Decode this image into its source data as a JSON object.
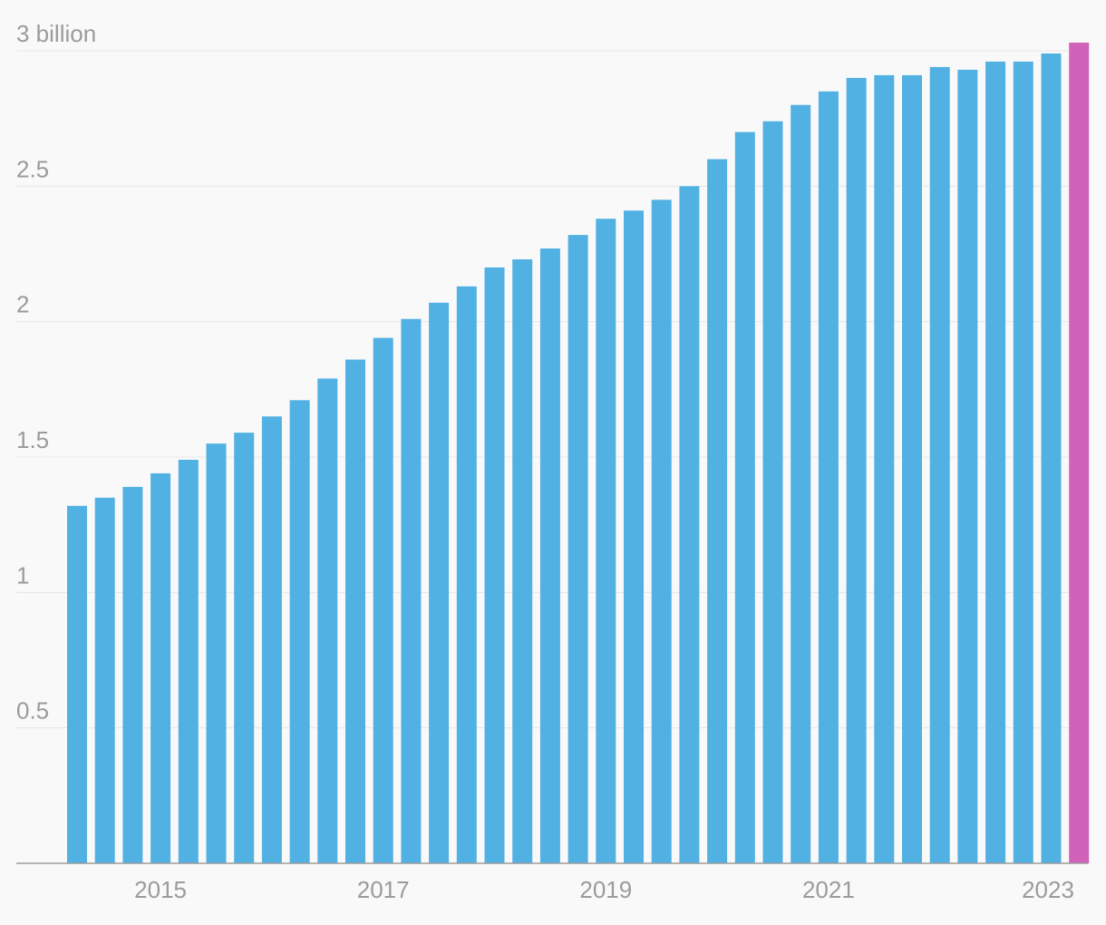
{
  "chart_data": {
    "type": "bar",
    "title": "",
    "xlabel": "",
    "ylabel": "",
    "unit": "billion",
    "ylim": [
      0,
      3
    ],
    "grid": true,
    "legend": "none",
    "y_ticks": [
      {
        "value": 0.5,
        "label": "0.5"
      },
      {
        "value": 1,
        "label": "1"
      },
      {
        "value": 1.5,
        "label": "1.5"
      },
      {
        "value": 2,
        "label": "2"
      },
      {
        "value": 2.5,
        "label": "2.5"
      },
      {
        "value": 3,
        "label": "3 billion"
      }
    ],
    "x_ticks": [
      {
        "category": "2015 Q1",
        "label": "2015"
      },
      {
        "category": "2017 Q1",
        "label": "2017"
      },
      {
        "category": "2019 Q1",
        "label": "2019"
      },
      {
        "category": "2021 Q1",
        "label": "2021"
      },
      {
        "category": "2023 Q1",
        "label": "2023"
      }
    ],
    "categories": [
      "2014 Q2",
      "2014 Q3",
      "2014 Q4",
      "2015 Q1",
      "2015 Q2",
      "2015 Q3",
      "2015 Q4",
      "2016 Q1",
      "2016 Q2",
      "2016 Q3",
      "2016 Q4",
      "2017 Q1",
      "2017 Q2",
      "2017 Q3",
      "2017 Q4",
      "2018 Q1",
      "2018 Q2",
      "2018 Q3",
      "2018 Q4",
      "2019 Q1",
      "2019 Q2",
      "2019 Q3",
      "2019 Q4",
      "2020 Q1",
      "2020 Q2",
      "2020 Q3",
      "2020 Q4",
      "2021 Q1",
      "2021 Q2",
      "2021 Q3",
      "2021 Q4",
      "2022 Q1",
      "2022 Q2",
      "2022 Q3",
      "2022 Q4",
      "2023 Q1",
      "2023 Q2"
    ],
    "values": [
      1.32,
      1.35,
      1.39,
      1.44,
      1.49,
      1.55,
      1.59,
      1.65,
      1.71,
      1.79,
      1.86,
      1.94,
      2.01,
      2.07,
      2.13,
      2.2,
      2.23,
      2.27,
      2.32,
      2.38,
      2.41,
      2.45,
      2.5,
      2.6,
      2.7,
      2.74,
      2.8,
      2.85,
      2.9,
      2.91,
      2.91,
      2.94,
      2.93,
      2.96,
      2.96,
      2.99,
      3.03
    ],
    "highlight_index": 36,
    "colors": {
      "bar": "#52b1e3",
      "highlight": "#d062b9",
      "grid": "#e6e6e6",
      "axis": "#9a9a9a",
      "tick_text": "#9b9b9b",
      "background": "#f9f9f9"
    }
  }
}
